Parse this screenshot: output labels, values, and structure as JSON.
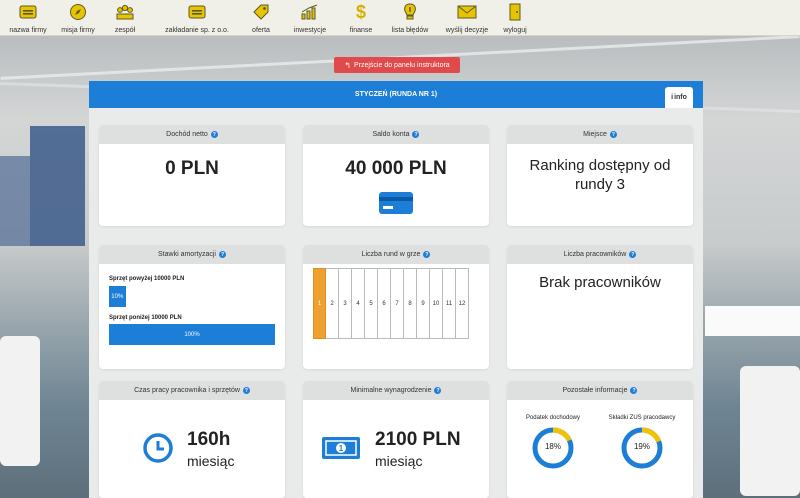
{
  "nav": [
    {
      "label": "nazwa firmy",
      "icon": "id-card-icon"
    },
    {
      "label": "misja firmy",
      "icon": "compass-icon"
    },
    {
      "label": "zespół",
      "icon": "team-icon"
    },
    {
      "label": "zakładanie sp. z o.o.",
      "icon": "document-icon"
    },
    {
      "label": "oferta",
      "icon": "tag-icon"
    },
    {
      "label": "inwestycje",
      "icon": "chart-icon"
    },
    {
      "label": "finanse",
      "icon": "dollar-icon"
    },
    {
      "label": "lista błędów",
      "icon": "warning-icon"
    },
    {
      "label": "wyślij decyzje",
      "icon": "mail-icon"
    },
    {
      "label": "wyloguj",
      "icon": "door-icon"
    }
  ],
  "instructor_button": "Przejście do panelu instruktora",
  "panel": {
    "title": "STYCZEŃ (RUNDA NR 1)",
    "info_label": "info"
  },
  "cards": {
    "income": {
      "title": "Dochód netto",
      "value": "0 PLN"
    },
    "balance": {
      "title": "Saldo konta",
      "value": "40 000 PLN"
    },
    "place": {
      "title": "Miejsce",
      "value": "Ranking dostępny od rundy 3"
    },
    "depreciation": {
      "title": "Stawki amortyzacji",
      "items": [
        {
          "label": "Sprzęt powyżej 10000 PLN",
          "percent": 10,
          "text": "10%"
        },
        {
          "label": "Sprzęt poniżej 10000 PLN",
          "percent": 100,
          "text": "100%"
        }
      ]
    },
    "rounds": {
      "title": "Liczba rund w grze",
      "numbers": [
        "1",
        "2",
        "3",
        "4",
        "5",
        "6",
        "7",
        "8",
        "9",
        "10",
        "11",
        "12"
      ],
      "current": 1
    },
    "employees": {
      "title": "Liczba pracowników",
      "value": "Brak pracowników"
    },
    "worktime": {
      "title": "Czas pracy pracownika i sprzętów",
      "value": "160h",
      "unit": "miesiąc"
    },
    "minwage": {
      "title": "Minimalne wynagrodzenie",
      "value": "2100 PLN",
      "unit": "miesiąc"
    },
    "other": {
      "title": "Pozostałe informacje",
      "items": [
        {
          "label": "Podatek dochodowy",
          "percent": 18,
          "text": "18%"
        },
        {
          "label": "Składki ZUS pracodawcy",
          "percent": 19,
          "text": "19%"
        }
      ]
    }
  },
  "colors": {
    "accent": "#1c7ed6",
    "danger": "#e04a4a",
    "round_active": "#f0a030",
    "donut_fill": "#f2c200",
    "nav_icon": "#c8a800"
  }
}
